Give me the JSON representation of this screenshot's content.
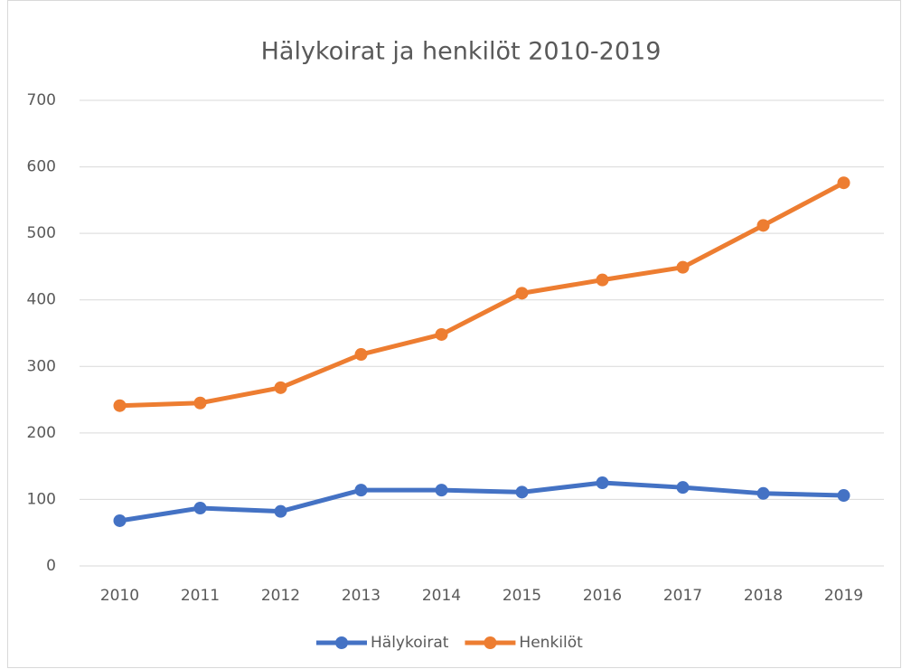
{
  "chart_data": {
    "type": "line",
    "title": "Hälykoirat ja henkilöt 2010-2019",
    "categories": [
      "2010",
      "2011",
      "2012",
      "2013",
      "2014",
      "2015",
      "2016",
      "2017",
      "2018",
      "2019"
    ],
    "series": [
      {
        "name": "Hälykoirat",
        "color": "#4472c4",
        "values": [
          68,
          87,
          82,
          114,
          114,
          111,
          125,
          118,
          109,
          106
        ]
      },
      {
        "name": "Henkilöt",
        "color": "#ed7d31",
        "values": [
          241,
          245,
          268,
          318,
          348,
          410,
          430,
          449,
          512,
          576
        ]
      }
    ],
    "ylim": [
      0,
      700
    ],
    "yticks": [
      0,
      100,
      200,
      300,
      400,
      500,
      600,
      700
    ],
    "grid": true,
    "legend": "bottom"
  }
}
